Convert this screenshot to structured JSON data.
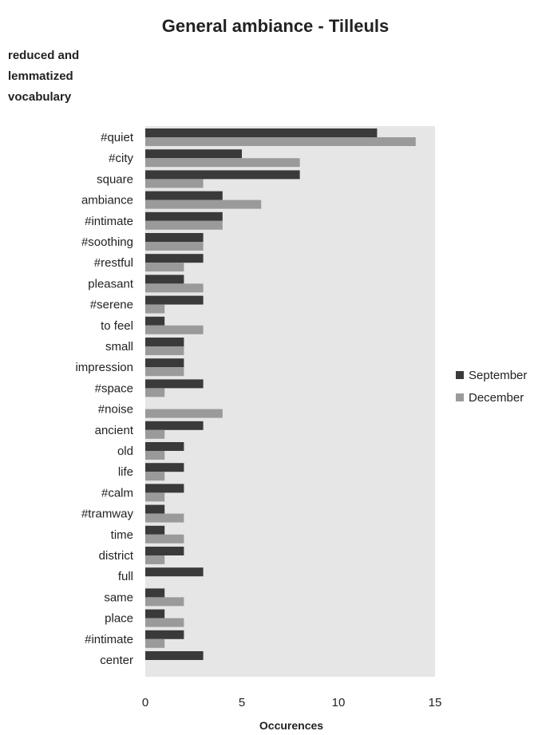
{
  "chart_data": {
    "type": "bar",
    "orientation": "horizontal",
    "title": "General ambiance - Tilleuls",
    "ylabel": "reduced and lemmatized vocabulary",
    "xlabel": "Occurences",
    "xlim": [
      0,
      15
    ],
    "xticks": [
      0,
      5,
      10,
      15
    ],
    "legend_position": "right",
    "categories": [
      "#quiet",
      "#city",
      "square",
      "ambiance",
      "#intimate",
      "#soothing",
      "#restful",
      "pleasant",
      "#serene",
      "to feel",
      "small",
      "impression",
      "#space",
      "#noise",
      "ancient",
      "old",
      "life",
      "#calm",
      "#tramway",
      "time",
      "district",
      "full",
      "same",
      "place",
      "#intimate",
      "center"
    ],
    "series": [
      {
        "name": "September",
        "color": "#3a3a3a",
        "values": [
          12,
          5,
          8,
          4,
          4,
          3,
          3,
          2,
          3,
          1,
          2,
          2,
          3,
          0,
          3,
          2,
          2,
          2,
          1,
          1,
          2,
          3,
          1,
          1,
          2,
          3
        ]
      },
      {
        "name": "December",
        "color": "#9a9a9a",
        "values": [
          14,
          8,
          3,
          6,
          4,
          3,
          2,
          3,
          1,
          3,
          2,
          2,
          1,
          4,
          1,
          1,
          1,
          1,
          2,
          2,
          1,
          0,
          2,
          2,
          1,
          0
        ]
      }
    ]
  }
}
